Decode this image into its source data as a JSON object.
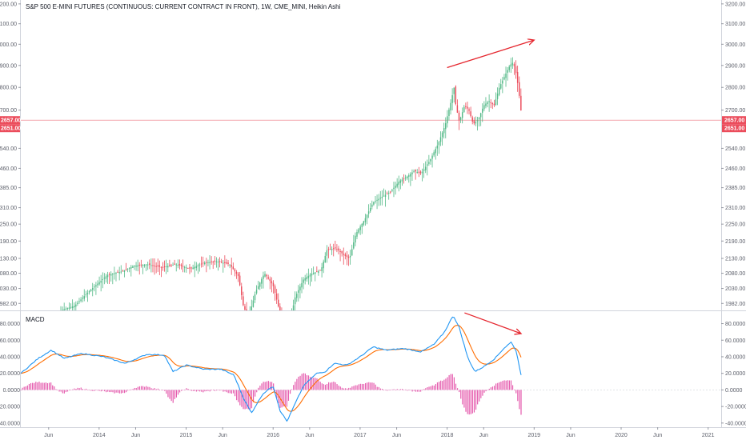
{
  "chart_data": {
    "type": "candlestick",
    "title": "S&P 500 E-MINI FUTURES (CONTINUOUS: CURRENT CONTRACT IN FRONT), 1W, CME_MINI, Heikin Ashi",
    "colors": {
      "up": "#53b987",
      "down": "#eb4d5c",
      "price_line": "#eb4d5c",
      "macd_line": "#2196f3",
      "signal_line": "#ff6d00",
      "histogram": "#e040a0",
      "arrow": "#e5262e"
    },
    "price_axis": {
      "ticks": [
        "3200.00",
        "3100.00",
        "3000.00",
        "2900.00",
        "2800.00",
        "2700.00",
        "2540.00",
        "2460.00",
        "2385.00",
        "2310.00",
        "2250.00",
        "2190.00",
        "2130.00",
        "2080.00",
        "2030.00",
        "1982.00"
      ],
      "scale": "log",
      "ylim": [
        1960,
        3220
      ]
    },
    "current_price_labels": [
      "2657.00",
      "2651.00"
    ],
    "macd_panel": {
      "label": "MACD",
      "ticks": [
        "80.0000",
        "60.0000",
        "40.0000",
        "20.0000",
        "0.0000",
        "-20.0000",
        "-40.0000"
      ],
      "ylim": [
        -45,
        95
      ]
    },
    "x_axis": {
      "ticks": [
        {
          "label": "Jun",
          "t": 2013.42
        },
        {
          "label": "2014",
          "t": 2014.0
        },
        {
          "label": "Jun",
          "t": 2014.42
        },
        {
          "label": "2015",
          "t": 2015.0
        },
        {
          "label": "Jun",
          "t": 2015.42
        },
        {
          "label": "2016",
          "t": 2016.0
        },
        {
          "label": "Jun",
          "t": 2016.42
        },
        {
          "label": "2017",
          "t": 2017.0
        },
        {
          "label": "Jun",
          "t": 2017.42
        },
        {
          "label": "2018",
          "t": 2018.0
        },
        {
          "label": "Jun",
          "t": 2018.42
        },
        {
          "label": "2019",
          "t": 2019.0
        },
        {
          "label": "Jun",
          "t": 2019.42
        },
        {
          "label": "2020",
          "t": 2020.0
        },
        {
          "label": "Jun",
          "t": 2020.42
        },
        {
          "label": "2021",
          "t": 2021.0
        }
      ],
      "xlim": [
        2013.1,
        2021.15
      ]
    },
    "price_path": [
      {
        "t": 2013.56,
        "p": 1960
      },
      {
        "t": 2013.72,
        "p": 1975
      },
      {
        "t": 2013.9,
        "p": 2025
      },
      {
        "t": 2014.1,
        "p": 2075
      },
      {
        "t": 2014.25,
        "p": 2085
      },
      {
        "t": 2014.4,
        "p": 2105
      },
      {
        "t": 2014.55,
        "p": 2110
      },
      {
        "t": 2014.72,
        "p": 2100
      },
      {
        "t": 2014.88,
        "p": 2110
      },
      {
        "t": 2015.05,
        "p": 2095
      },
      {
        "t": 2015.2,
        "p": 2115
      },
      {
        "t": 2015.35,
        "p": 2120
      },
      {
        "t": 2015.5,
        "p": 2110
      },
      {
        "t": 2015.6,
        "p": 2070
      },
      {
        "t": 2015.66,
        "p": 1970
      },
      {
        "t": 2015.72,
        "p": 1940
      },
      {
        "t": 2015.8,
        "p": 2020
      },
      {
        "t": 2015.9,
        "p": 2080
      },
      {
        "t": 2016.0,
        "p": 2040
      },
      {
        "t": 2016.08,
        "p": 1950
      },
      {
        "t": 2016.18,
        "p": 1900
      },
      {
        "t": 2016.25,
        "p": 2000
      },
      {
        "t": 2016.35,
        "p": 2060
      },
      {
        "t": 2016.45,
        "p": 2080
      },
      {
        "t": 2016.55,
        "p": 2090
      },
      {
        "t": 2016.62,
        "p": 2160
      },
      {
        "t": 2016.72,
        "p": 2165
      },
      {
        "t": 2016.82,
        "p": 2140
      },
      {
        "t": 2016.88,
        "p": 2130
      },
      {
        "t": 2016.95,
        "p": 2215
      },
      {
        "t": 2017.05,
        "p": 2265
      },
      {
        "t": 2017.15,
        "p": 2330
      },
      {
        "t": 2017.25,
        "p": 2350
      },
      {
        "t": 2017.35,
        "p": 2370
      },
      {
        "t": 2017.45,
        "p": 2410
      },
      {
        "t": 2017.55,
        "p": 2430
      },
      {
        "t": 2017.62,
        "p": 2450
      },
      {
        "t": 2017.7,
        "p": 2440
      },
      {
        "t": 2017.8,
        "p": 2490
      },
      {
        "t": 2017.9,
        "p": 2560
      },
      {
        "t": 2017.98,
        "p": 2640
      },
      {
        "t": 2018.04,
        "p": 2730
      },
      {
        "t": 2018.08,
        "p": 2800
      },
      {
        "t": 2018.1,
        "p": 2720
      },
      {
        "t": 2018.14,
        "p": 2650
      },
      {
        "t": 2018.2,
        "p": 2720
      },
      {
        "t": 2018.25,
        "p": 2700
      },
      {
        "t": 2018.3,
        "p": 2640
      },
      {
        "t": 2018.36,
        "p": 2660
      },
      {
        "t": 2018.42,
        "p": 2720
      },
      {
        "t": 2018.48,
        "p": 2740
      },
      {
        "t": 2018.54,
        "p": 2720
      },
      {
        "t": 2018.6,
        "p": 2800
      },
      {
        "t": 2018.66,
        "p": 2850
      },
      {
        "t": 2018.72,
        "p": 2900
      },
      {
        "t": 2018.76,
        "p": 2915
      },
      {
        "t": 2018.8,
        "p": 2850
      },
      {
        "t": 2018.83,
        "p": 2760
      },
      {
        "t": 2018.86,
        "p": 2660
      }
    ],
    "macd_path": [
      {
        "t": 2013.1,
        "m": 20
      },
      {
        "t": 2013.3,
        "m": 38
      },
      {
        "t": 2013.45,
        "m": 48
      },
      {
        "t": 2013.6,
        "m": 38
      },
      {
        "t": 2013.8,
        "m": 44
      },
      {
        "t": 2014.05,
        "m": 40
      },
      {
        "t": 2014.3,
        "m": 32
      },
      {
        "t": 2014.55,
        "m": 43
      },
      {
        "t": 2014.75,
        "m": 42
      },
      {
        "t": 2014.85,
        "m": 22
      },
      {
        "t": 2015.0,
        "m": 30
      },
      {
        "t": 2015.2,
        "m": 25
      },
      {
        "t": 2015.4,
        "m": 25
      },
      {
        "t": 2015.55,
        "m": 18
      },
      {
        "t": 2015.66,
        "m": -10
      },
      {
        "t": 2015.75,
        "m": -28
      },
      {
        "t": 2015.88,
        "m": -5
      },
      {
        "t": 2016.0,
        "m": 5
      },
      {
        "t": 2016.08,
        "m": -25
      },
      {
        "t": 2016.16,
        "m": -38
      },
      {
        "t": 2016.26,
        "m": -15
      },
      {
        "t": 2016.35,
        "m": 5
      },
      {
        "t": 2016.5,
        "m": 20
      },
      {
        "t": 2016.6,
        "m": 22
      },
      {
        "t": 2016.7,
        "m": 32
      },
      {
        "t": 2016.85,
        "m": 30
      },
      {
        "t": 2017.0,
        "m": 40
      },
      {
        "t": 2017.15,
        "m": 52
      },
      {
        "t": 2017.3,
        "m": 48
      },
      {
        "t": 2017.5,
        "m": 50
      },
      {
        "t": 2017.7,
        "m": 46
      },
      {
        "t": 2017.85,
        "m": 55
      },
      {
        "t": 2017.97,
        "m": 70
      },
      {
        "t": 2018.07,
        "m": 90
      },
      {
        "t": 2018.14,
        "m": 75
      },
      {
        "t": 2018.24,
        "m": 38
      },
      {
        "t": 2018.32,
        "m": 22
      },
      {
        "t": 2018.42,
        "m": 28
      },
      {
        "t": 2018.55,
        "m": 38
      },
      {
        "t": 2018.65,
        "m": 50
      },
      {
        "t": 2018.74,
        "m": 58
      },
      {
        "t": 2018.8,
        "m": 45
      },
      {
        "t": 2018.86,
        "m": 12
      }
    ],
    "divergence_arrows": [
      {
        "panel": "price",
        "from": {
          "t": 2018.0,
          "v": 2890
        },
        "to": {
          "t": 2019.0,
          "v": 3020
        }
      },
      {
        "panel": "macd",
        "from": {
          "t": 2018.2,
          "v": 93
        },
        "to": {
          "t": 2018.85,
          "v": 68
        }
      }
    ]
  }
}
